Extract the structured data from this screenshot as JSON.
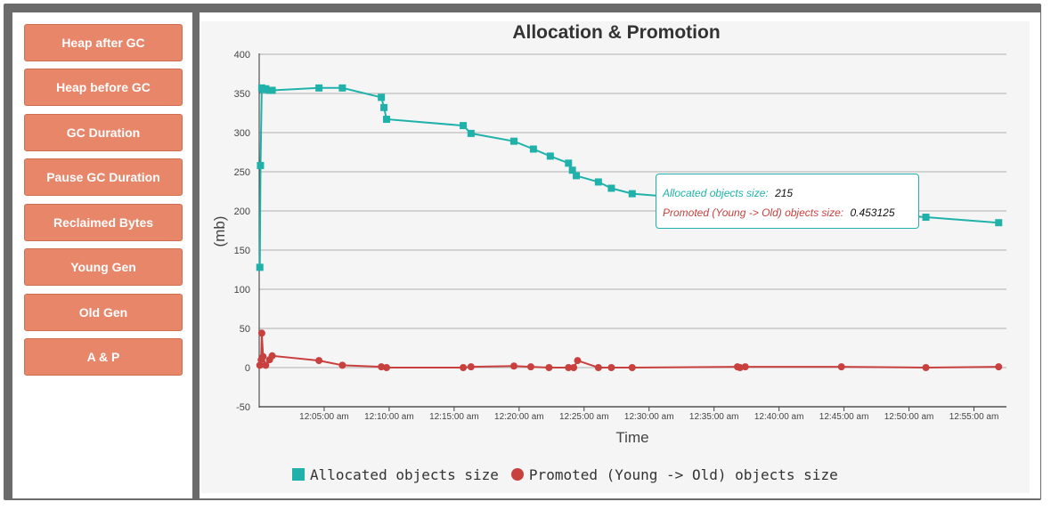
{
  "sidebar": {
    "items": [
      {
        "label": "Heap after GC"
      },
      {
        "label": "Heap before GC"
      },
      {
        "label": "GC Duration"
      },
      {
        "label": "Pause GC Duration"
      },
      {
        "label": "Reclaimed Bytes"
      },
      {
        "label": "Young Gen"
      },
      {
        "label": "Old Gen"
      },
      {
        "label": "A & P"
      }
    ]
  },
  "colors": {
    "button": "#e8866a",
    "allocated": "#20b2aa",
    "promoted": "#c8413f"
  },
  "tooltip": {
    "allocated_label": "Allocated objects size:",
    "allocated_value": "215",
    "promoted_label": "Promoted (Young -> Old) objects size:",
    "promoted_value": "0.453125"
  },
  "chart_data": {
    "type": "line",
    "title": "Allocation & Promotion",
    "xlabel": "Time",
    "ylabel": "(mb)",
    "ylim": [
      -50,
      400
    ],
    "y_ticks": [
      400,
      350,
      300,
      250,
      200,
      150,
      100,
      50,
      0,
      -50
    ],
    "x_unit": "minutes after 12:00:00 am",
    "xlim": [
      0,
      57.5
    ],
    "x_ticks": [
      {
        "value": 5,
        "label": "12:05:00 am"
      },
      {
        "value": 10,
        "label": "12:10:00 am"
      },
      {
        "value": 15,
        "label": "12:15:00 am"
      },
      {
        "value": 20,
        "label": "12:20:00 am"
      },
      {
        "value": 25,
        "label": "12:25:00 am"
      },
      {
        "value": 30,
        "label": "12:30:00 am"
      },
      {
        "value": 35,
        "label": "12:35:00 am"
      },
      {
        "value": 40,
        "label": "12:40:00 am"
      },
      {
        "value": 45,
        "label": "12:45:00 am"
      },
      {
        "value": 50,
        "label": "12:50:00 am"
      },
      {
        "value": 55,
        "label": "12:55:00 am"
      }
    ],
    "grid": true,
    "legend_position": "bottom",
    "series": [
      {
        "name": "Allocated objects size",
        "marker": "square",
        "x": [
          0.05,
          0.1,
          0.2,
          0.3,
          0.5,
          0.8,
          1.0,
          4.6,
          6.4,
          9.4,
          9.6,
          9.8,
          15.7,
          16.3,
          19.6,
          21.1,
          22.4,
          23.8,
          24.1,
          24.4,
          26.1,
          27.1,
          28.7,
          51.3,
          56.9
        ],
        "y": [
          128,
          258,
          357,
          355,
          356,
          354,
          354,
          357,
          357,
          345,
          332,
          317,
          309,
          299,
          289,
          279,
          270,
          261,
          252,
          245,
          237,
          229,
          222,
          192,
          185
        ]
      },
      {
        "name": "Promoted (Young -> Old) objects size",
        "marker": "circle",
        "x": [
          0.05,
          0.15,
          0.2,
          0.3,
          0.5,
          0.8,
          1.0,
          4.6,
          6.4,
          9.4,
          9.8,
          15.7,
          16.3,
          19.6,
          20.9,
          22.3,
          23.8,
          24.2,
          24.5,
          26.1,
          27.1,
          28.7,
          36.8,
          37.0,
          37.4,
          44.8,
          51.3,
          56.9
        ],
        "y": [
          3,
          10,
          44,
          14,
          3,
          10,
          15,
          9,
          3,
          1,
          0,
          0,
          1,
          2,
          1,
          0,
          0,
          0,
          9,
          0,
          0,
          0,
          1,
          0,
          1,
          1,
          0,
          1
        ]
      }
    ]
  },
  "legend": {
    "allocated": "Allocated objects size",
    "promoted": "Promoted (Young -> Old) objects size"
  }
}
